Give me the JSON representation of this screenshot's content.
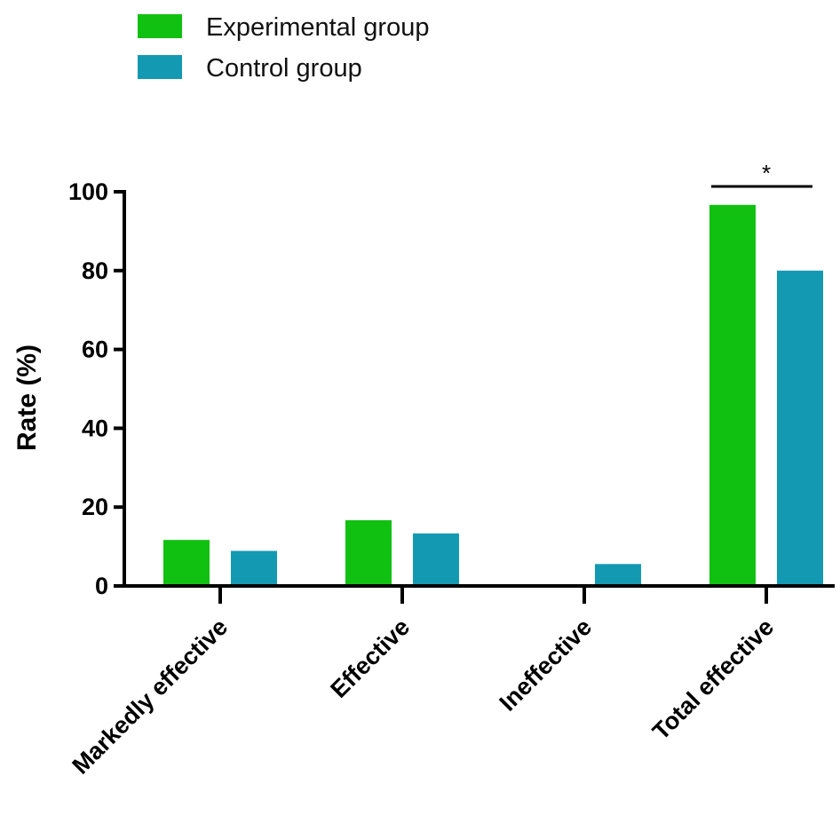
{
  "chart_data": {
    "type": "bar",
    "categories": [
      "Markedly effective",
      "Effective",
      "Ineffective",
      "Total effective"
    ],
    "series": [
      {
        "name": "Experimental group",
        "color": "#11c111",
        "values": [
          11.67,
          16.67,
          0,
          96.67
        ]
      },
      {
        "name": "Control group",
        "color": "#1499b3",
        "values": [
          8.89,
          13.33,
          5.56,
          80.0
        ]
      }
    ],
    "ylabel": "Rate (%)",
    "xlabel": "",
    "ylim": [
      0,
      100
    ],
    "yticks": [
      "0",
      "20",
      "40",
      "60",
      "80",
      "100"
    ],
    "legend": "top-left",
    "grid": false,
    "annotations": [
      {
        "text": "*",
        "category": "Total effective",
        "type": "significance-bracket"
      }
    ]
  }
}
